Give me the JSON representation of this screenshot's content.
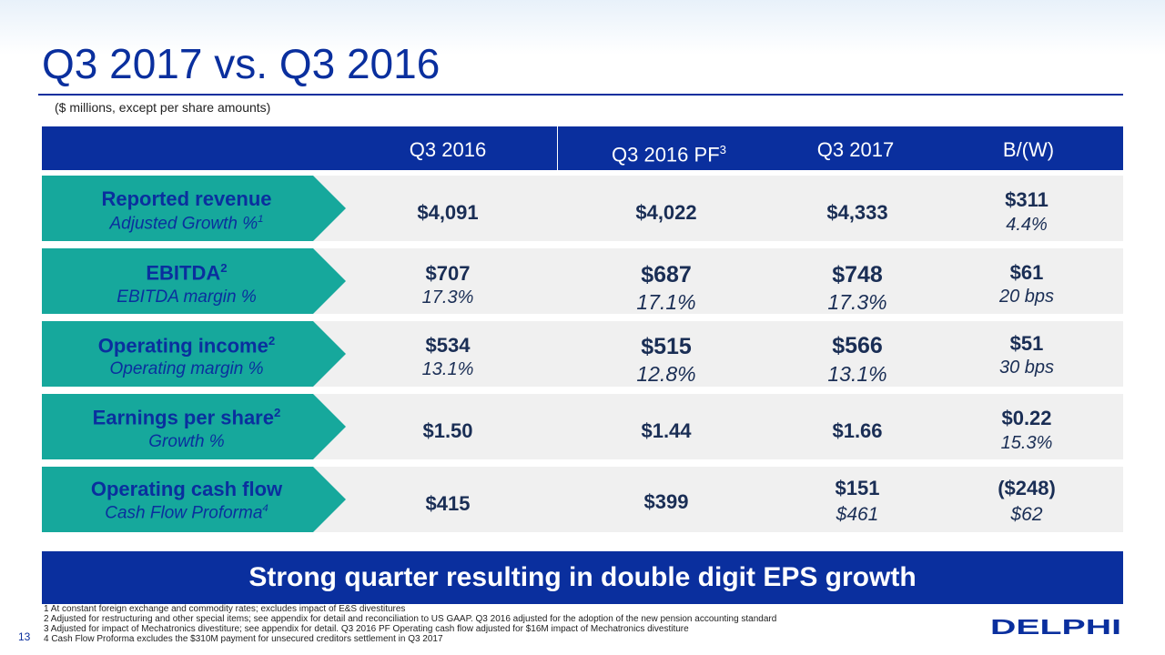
{
  "title": "Q3 2017 vs. Q3 2016",
  "subtitle": "($ millions, except per share amounts)",
  "columns": [
    "Q3 2016",
    "Q3 2016 PF",
    "Q3 2017",
    "B/(W)"
  ],
  "columns_pf_sup": "3",
  "rows": [
    {
      "label": "Reported revenue",
      "label_sup": "",
      "sublabel": "Adjusted Growth %",
      "sublabel_sup": "1",
      "q3_2016": "$4,091",
      "q3_2016_pf": "$4,022",
      "q3_2017": "$4,333",
      "bw": "$311",
      "bw_sub": "4.4%"
    },
    {
      "label": "EBITDA",
      "label_sup": "2",
      "sublabel": "EBITDA margin %",
      "sublabel_sup": "",
      "q3_2016": "$707",
      "q3_2016_sub": "17.3%",
      "q3_2016_pf": "$687",
      "q3_2016_pf_sub": "17.1%",
      "q3_2017": "$748",
      "q3_2017_sub": "17.3%",
      "bw": "$61",
      "bw_sub": "20 bps"
    },
    {
      "label": "Operating income",
      "label_sup": "2",
      "sublabel": "Operating margin %",
      "sublabel_sup": "",
      "q3_2016": "$534",
      "q3_2016_sub": "13.1%",
      "q3_2016_pf": "$515",
      "q3_2016_pf_sub": "12.8%",
      "q3_2017": "$566",
      "q3_2017_sub": "13.1%",
      "bw": "$51",
      "bw_sub": "30 bps"
    },
    {
      "label": "Earnings per share",
      "label_sup": "2",
      "sublabel": "Growth %",
      "sublabel_sup": "",
      "q3_2016": "$1.50",
      "q3_2016_pf": "$1.44",
      "q3_2017": "$1.66",
      "bw": "$0.22",
      "bw_sub": "15.3%"
    },
    {
      "label": "Operating cash flow",
      "label_sup": "",
      "sublabel": "Cash Flow Proforma",
      "sublabel_sup": "4",
      "q3_2016": "$415",
      "q3_2016_pf": "$399",
      "q3_2017": "$151",
      "q3_2017_sub": "$461",
      "bw": "($248)",
      "bw_sub": "$62"
    }
  ],
  "banner": "Strong quarter resulting in double digit EPS growth",
  "footnotes": [
    "1  At constant foreign exchange and commodity rates; excludes impact of E&S divestitures",
    "2  Adjusted for restructuring and other special items; see appendix for detail and reconciliation to US GAAP. Q3 2016 adjusted for the adoption of the new pension accounting standard",
    "3  Adjusted for impact of Mechatronics divestiture; see appendix for detail. Q3 2016 PF Operating cash flow adjusted for $16M impact of Mechatronics divestiture",
    "4  Cash Flow Proforma excludes the $310M payment for unsecured creditors settlement in Q3 2017"
  ],
  "page_number": "13",
  "logo_text": "DELPHI",
  "colors": {
    "brand_blue": "#0a2f9e",
    "teal": "#16a89c",
    "row_bg": "#f0f0f0"
  }
}
